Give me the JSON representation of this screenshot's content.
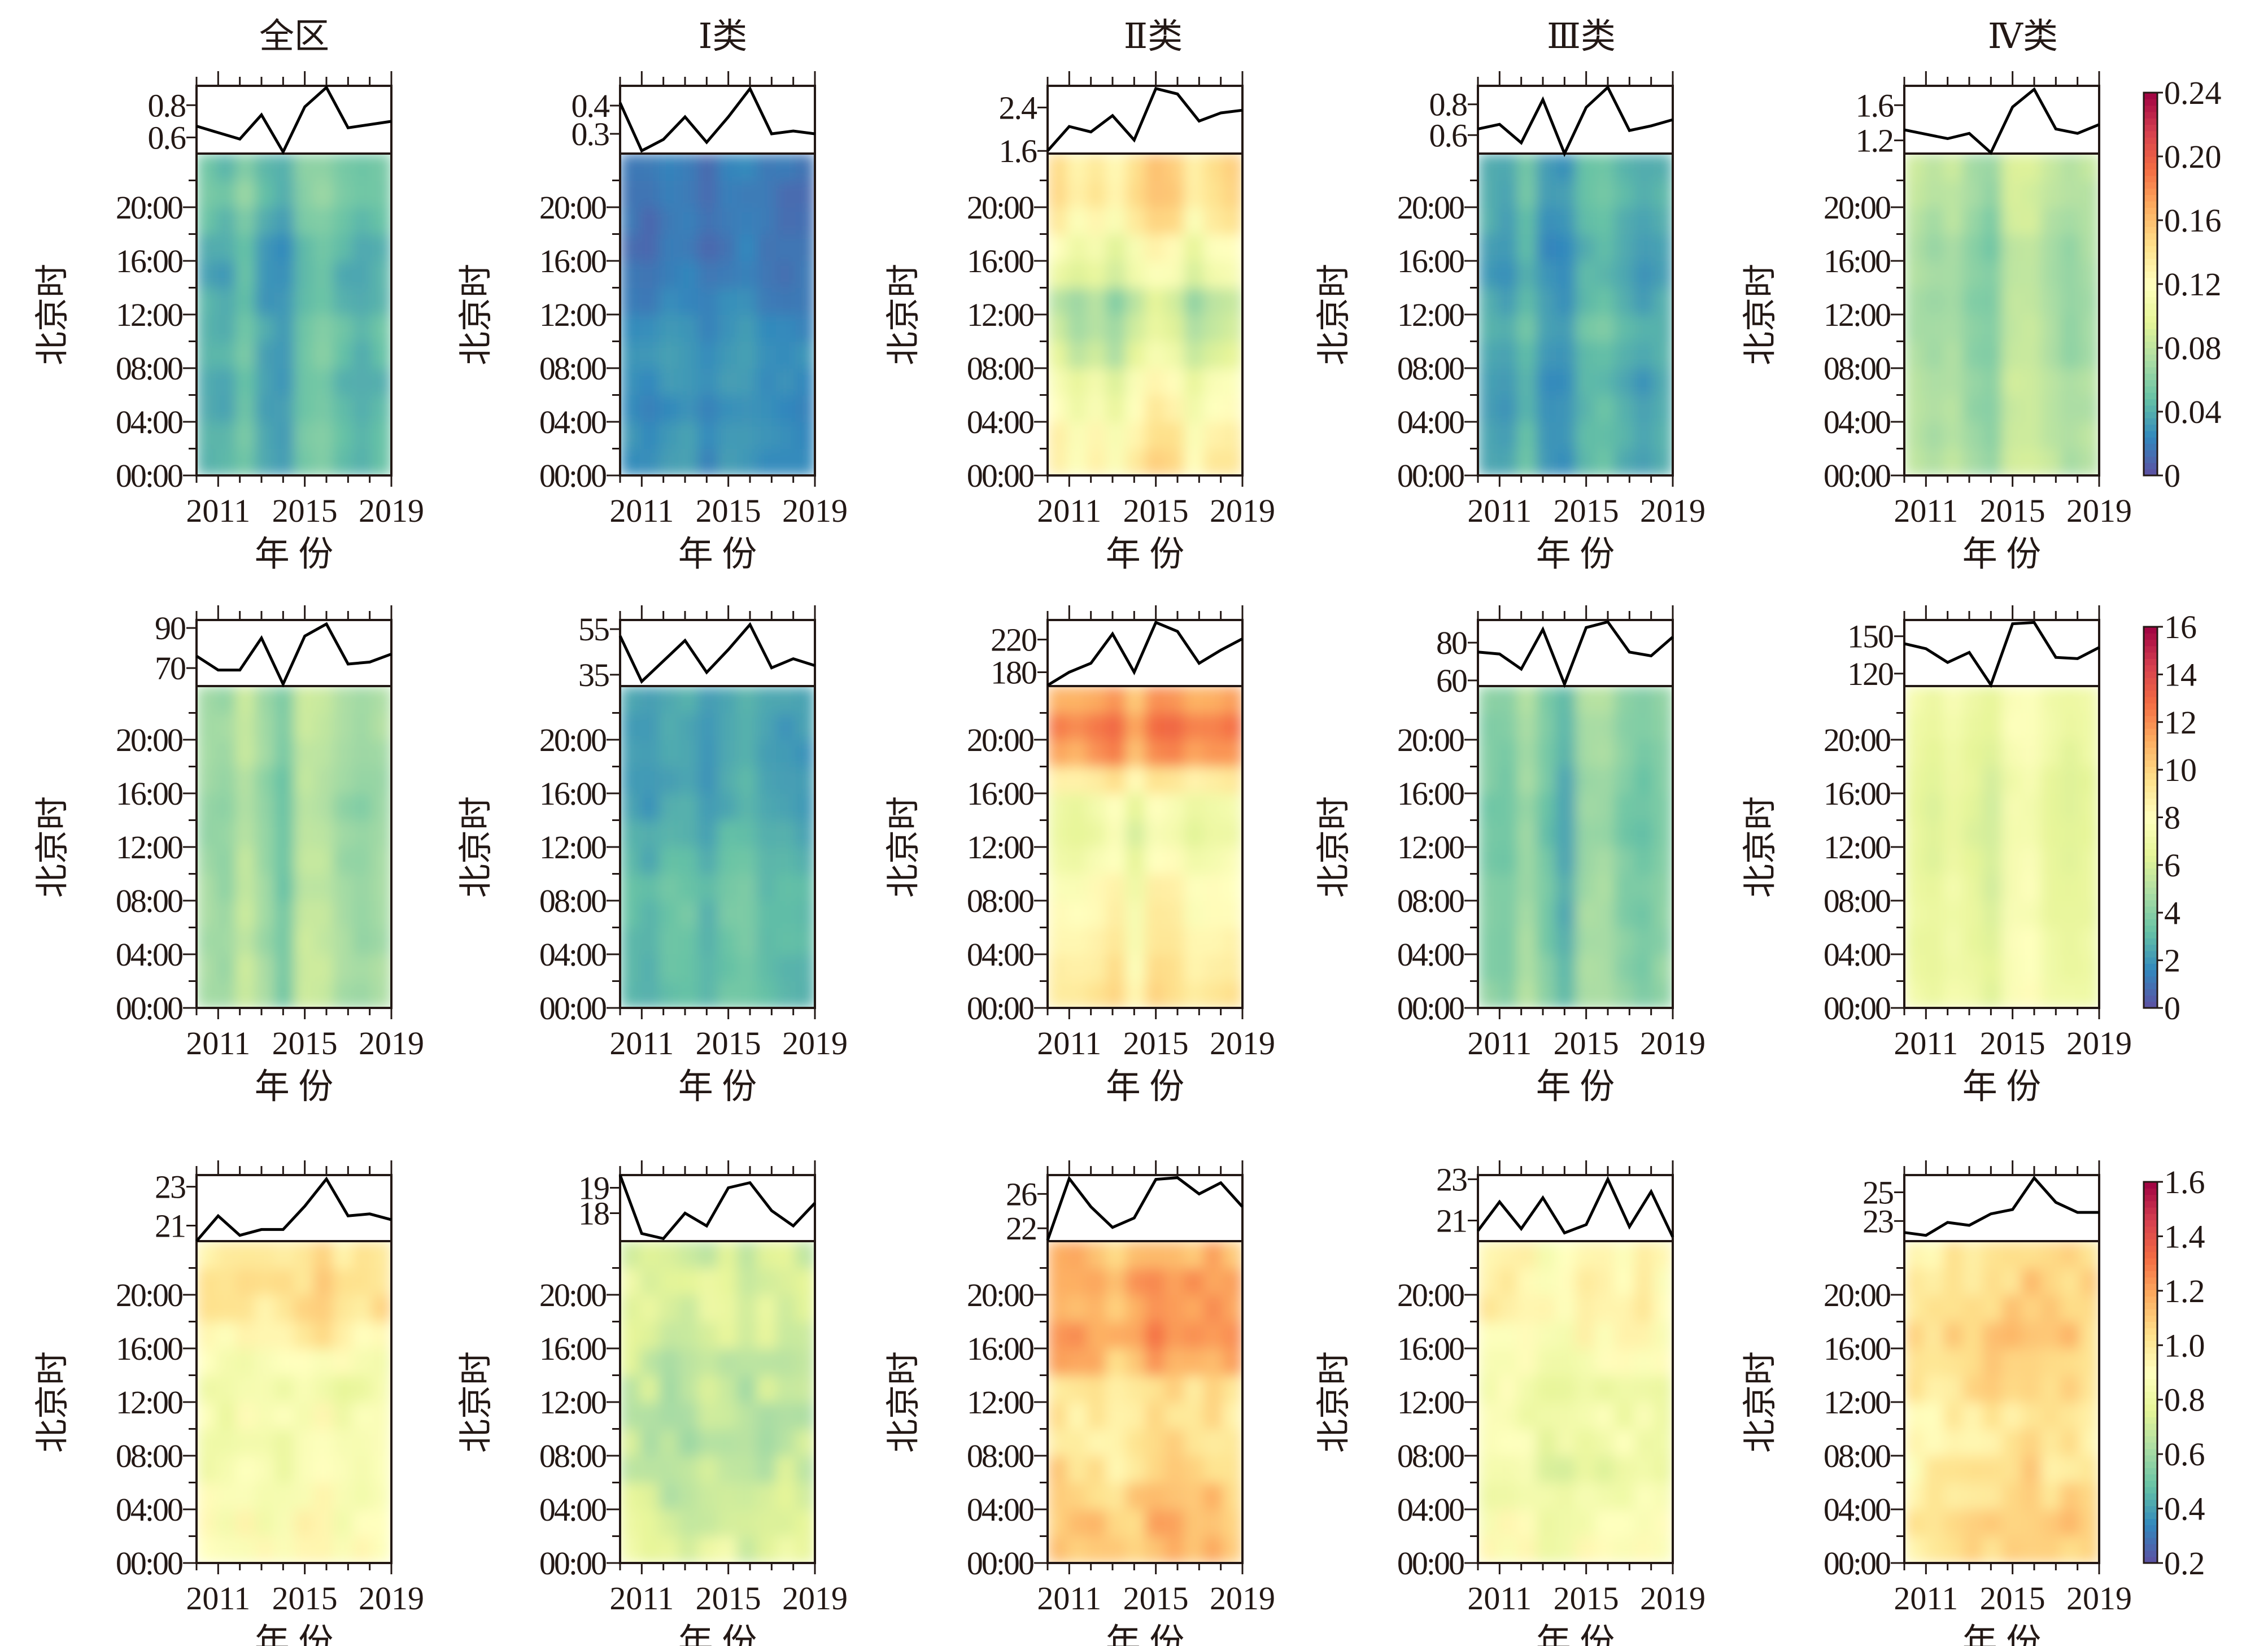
{
  "chart_data": {
    "type": "heatmap",
    "layout": "3 rows x 5 columns of panels; each panel = annual line plot on top + hour-by-year contour heatmap below",
    "column_titles": [
      "全区",
      "Ⅰ类",
      "Ⅱ类",
      "Ⅲ类",
      "Ⅳ类"
    ],
    "xlabel": "年 份",
    "ylabel": "北京时",
    "years": [
      2010,
      2011,
      2012,
      2013,
      2014,
      2015,
      2016,
      2017,
      2018,
      2019
    ],
    "x_tick_labels": [
      "2011",
      "2015",
      "2019"
    ],
    "y_tick_labels": [
      "00:00",
      "04:00",
      "08:00",
      "12:00",
      "16:00",
      "20:00"
    ],
    "hours": [
      0,
      2,
      4,
      6,
      8,
      10,
      12,
      14,
      16,
      18,
      20,
      22
    ],
    "colormap": "Spectral_r",
    "colormap_stops": [
      "#5e4fa2",
      "#3288bd",
      "#66c2a5",
      "#abdda4",
      "#e6f598",
      "#ffffbf",
      "#fee08b",
      "#fdae61",
      "#f46d43",
      "#d53e4f",
      "#9e0142"
    ],
    "rows": [
      {
        "colorbar": {
          "min": 0,
          "max": 0.24,
          "tick_labels": [
            "0",
            "0.04",
            "0.08",
            "0.12",
            "0.16",
            "0.20",
            "0.24"
          ]
        },
        "panels": [
          {
            "title": "全区",
            "line_ticks": [
              "0.6",
              "0.8"
            ],
            "line_tick_values": [
              0.6,
              0.8
            ],
            "line_ylim": [
              0.5,
              0.92
            ],
            "line": [
              0.67,
              0.63,
              0.59,
              0.74,
              0.51,
              0.79,
              0.91,
              0.66,
              0.68,
              0.7
            ],
            "heat_base": 0.045,
            "heat_hour_profile": [
              0.0,
              0.0,
              -0.003,
              -0.005,
              0.0,
              0.0,
              -0.005,
              -0.008,
              -0.005,
              0.002,
              0.008,
              0.005
            ],
            "heat_year_profile": [
              0.0,
              -0.004,
              0.01,
              -0.008,
              -0.012,
              0.008,
              0.012,
              0.003,
              -0.003,
              0.003
            ]
          },
          {
            "title": "Ⅰ类",
            "line_ticks": [
              "0.3",
              "0.4"
            ],
            "line_tick_values": [
              0.3,
              0.4
            ],
            "line_ylim": [
              0.23,
              0.47
            ],
            "line": [
              0.41,
              0.24,
              0.28,
              0.36,
              0.27,
              0.36,
              0.46,
              0.3,
              0.31,
              0.3
            ],
            "heat_base": 0.022,
            "heat_hour_profile": [
              0.006,
              0.006,
              0.004,
              0.006,
              0.008,
              0.004,
              0.0,
              -0.004,
              -0.006,
              -0.006,
              -0.006,
              -0.004
            ],
            "heat_year_profile": [
              0.0,
              -0.003,
              0.002,
              0.004,
              -0.004,
              0.002,
              0.006,
              0.0,
              -0.002,
              -0.002
            ]
          },
          {
            "title": "Ⅱ类",
            "line_ticks": [
              "1.6",
              "2.4"
            ],
            "line_tick_values": [
              1.6,
              2.4
            ],
            "line_ylim": [
              1.55,
              2.8
            ],
            "line": [
              1.6,
              2.05,
              1.95,
              2.25,
              1.8,
              2.75,
              2.65,
              2.15,
              2.3,
              2.35
            ],
            "heat_base": 0.11,
            "heat_hour_profile": [
              0.02,
              0.015,
              0.005,
              0.0,
              -0.02,
              -0.03,
              -0.035,
              -0.01,
              0.0,
              0.02,
              0.03,
              0.03
            ],
            "heat_year_profile": [
              0.005,
              -0.01,
              0.0,
              -0.015,
              0.005,
              0.02,
              0.015,
              -0.01,
              0.005,
              0.01
            ]
          },
          {
            "title": "Ⅲ类",
            "line_ticks": [
              "0.6",
              "0.8"
            ],
            "line_tick_values": [
              0.6,
              0.8
            ],
            "line_ylim": [
              0.48,
              0.92
            ],
            "line": [
              0.64,
              0.67,
              0.55,
              0.83,
              0.48,
              0.78,
              0.91,
              0.63,
              0.66,
              0.7
            ],
            "heat_base": 0.038,
            "heat_hour_profile": [
              0.0,
              0.0,
              -0.002,
              -0.004,
              0.0,
              0.004,
              0.0,
              -0.004,
              -0.004,
              0.0,
              0.004,
              0.002
            ],
            "heat_year_profile": [
              0.0,
              -0.004,
              0.01,
              -0.008,
              -0.01,
              0.008,
              0.012,
              0.002,
              -0.004,
              0.002
            ]
          },
          {
            "title": "Ⅳ类",
            "line_ticks": [
              "1.2",
              "1.6"
            ],
            "line_tick_values": [
              1.2,
              1.6
            ],
            "line_ylim": [
              1.05,
              1.82
            ],
            "line": [
              1.32,
              1.27,
              1.22,
              1.28,
              1.06,
              1.58,
              1.78,
              1.33,
              1.28,
              1.38
            ],
            "heat_base": 0.075,
            "heat_hour_profile": [
              0.004,
              0.002,
              0.0,
              0.0,
              -0.004,
              -0.004,
              -0.006,
              -0.004,
              -0.004,
              0.0,
              0.004,
              0.006
            ],
            "heat_year_profile": [
              0.002,
              -0.004,
              0.002,
              -0.01,
              -0.016,
              0.01,
              0.012,
              0.002,
              -0.006,
              0.0
            ]
          }
        ]
      },
      {
        "colorbar": {
          "min": 0,
          "max": 16,
          "tick_labels": [
            "0",
            "2",
            "4",
            "6",
            "8",
            "10",
            "12",
            "14",
            "16"
          ]
        },
        "panels": [
          {
            "title": "全区",
            "line_ticks": [
              "70",
              "90"
            ],
            "line_tick_values": [
              70,
              90
            ],
            "line_ylim": [
              61,
              94
            ],
            "line": [
              76,
              69,
              69,
              85,
              62,
              86,
              92,
              72,
              73,
              77
            ],
            "heat_base": 4.6,
            "heat_hour_profile": [
              0.2,
              0.2,
              0.1,
              0.0,
              0.0,
              -0.1,
              -0.2,
              -0.3,
              -0.2,
              0.0,
              0.2,
              0.1
            ],
            "heat_year_profile": [
              0.0,
              -0.3,
              0.9,
              -0.2,
              -1.2,
              0.9,
              0.8,
              0.0,
              -0.3,
              0.0
            ]
          },
          {
            "title": "Ⅰ类",
            "line_ticks": [
              "35",
              "55"
            ],
            "line_tick_values": [
              35,
              55
            ],
            "line_ylim": [
              30,
              59
            ],
            "line": [
              52,
              32,
              41,
              50,
              36,
              46,
              57,
              38,
              42,
              39
            ],
            "heat_base": 2.6,
            "heat_hour_profile": [
              0.4,
              0.5,
              0.5,
              0.6,
              0.5,
              0.2,
              0.0,
              -0.3,
              -0.4,
              -0.4,
              -0.4,
              -0.3
            ],
            "heat_year_profile": [
              0.0,
              -0.2,
              0.2,
              0.3,
              -0.3,
              0.3,
              0.6,
              0.0,
              -0.1,
              -0.1
            ]
          },
          {
            "title": "Ⅱ类",
            "line_ticks": [
              "180",
              "220"
            ],
            "line_tick_values": [
              180,
              220
            ],
            "line_ylim": [
              163,
              244
            ],
            "line": [
              164,
              180,
              191,
              227,
              180,
              241,
              230,
              191,
              207,
              221
            ],
            "heat_base": 8.5,
            "heat_hour_profile": [
              0.6,
              0.3,
              0.0,
              -0.4,
              -0.6,
              -1.2,
              -1.8,
              -1.5,
              0.3,
              3.0,
              3.8,
              2.6
            ],
            "heat_year_profile": [
              0.0,
              -0.3,
              0.2,
              0.8,
              -0.8,
              0.8,
              0.7,
              -0.2,
              0.1,
              0.3
            ]
          },
          {
            "title": "Ⅲ类",
            "line_ticks": [
              "60",
              "80"
            ],
            "line_tick_values": [
              60,
              80
            ],
            "line_ylim": [
              57,
              92
            ],
            "line": [
              75,
              74,
              66,
              87,
              58,
              88,
              91,
              75,
              73,
              83
            ],
            "heat_base": 3.8,
            "heat_hour_profile": [
              0.3,
              0.2,
              0.1,
              0.0,
              0.0,
              -0.1,
              -0.3,
              -0.3,
              -0.1,
              0.1,
              0.2,
              0.3
            ],
            "heat_year_profile": [
              0.0,
              -0.2,
              0.9,
              -0.2,
              -1.3,
              0.9,
              0.9,
              0.1,
              -0.3,
              0.2
            ]
          },
          {
            "title": "Ⅳ类",
            "line_ticks": [
              "120",
              "150"
            ],
            "line_tick_values": [
              120,
              150
            ],
            "line_ylim": [
              110,
              163
            ],
            "line": [
              144,
              140,
              129,
              137,
              111,
              160,
              161,
              133,
              132,
              141
            ],
            "heat_base": 6.8,
            "heat_hour_profile": [
              0.3,
              0.2,
              0.1,
              0.0,
              0.0,
              -0.1,
              -0.3,
              -0.3,
              -0.2,
              0.0,
              0.3,
              0.3
            ],
            "heat_year_profile": [
              0.0,
              -0.3,
              0.3,
              -0.2,
              -0.8,
              0.7,
              0.9,
              0.0,
              -0.3,
              0.0
            ]
          }
        ]
      },
      {
        "colorbar": {
          "min": 0.2,
          "max": 1.6,
          "tick_labels": [
            "0.2",
            "0.4",
            "0.6",
            "0.8",
            "1.0",
            "1.2",
            "1.4",
            "1.6"
          ]
        },
        "panels": [
          {
            "title": "全区",
            "line_ticks": [
              "21",
              "23"
            ],
            "line_tick_values": [
              21,
              23
            ],
            "line_ylim": [
              20.2,
              23.6
            ],
            "line": [
              20.2,
              21.5,
              20.5,
              20.8,
              20.8,
              22.0,
              23.4,
              21.5,
              21.6,
              21.3
            ],
            "heat_base": 0.88,
            "heat_hour_profile": [
              0.02,
              0.0,
              -0.02,
              -0.04,
              -0.04,
              -0.02,
              -0.06,
              -0.02,
              0.06,
              0.12,
              0.12,
              0.08
            ],
            "heat_year_profile": [
              0.0,
              -0.02,
              0.02,
              0.0,
              0.0,
              0.04,
              0.06,
              0.0,
              0.02,
              0.02
            ]
          },
          {
            "title": "Ⅰ类",
            "line_ticks": [
              "18",
              "19"
            ],
            "line_tick_values": [
              18,
              19
            ],
            "line_ylim": [
              16.9,
              19.5
            ],
            "line": [
              19.5,
              17.2,
              17.0,
              18.0,
              17.5,
              19.0,
              19.2,
              18.1,
              17.5,
              18.4
            ],
            "heat_base": 0.72,
            "heat_hour_profile": [
              0.04,
              0.02,
              -0.02,
              -0.04,
              -0.06,
              -0.06,
              -0.04,
              -0.04,
              0.0,
              0.02,
              0.02,
              -0.02
            ],
            "heat_year_profile": [
              0.02,
              0.0,
              -0.02,
              -0.04,
              0.0,
              0.02,
              -0.04,
              0.0,
              0.02,
              0.02
            ]
          },
          {
            "title": "Ⅱ类",
            "line_ticks": [
              "22",
              "26"
            ],
            "line_tick_values": [
              22,
              26
            ],
            "line_ylim": [
              20.5,
              28.2
            ],
            "line": [
              20.6,
              27.8,
              24.5,
              22.1,
              23.2,
              27.7,
              27.9,
              26.0,
              27.3,
              24.5
            ],
            "heat_base": 1.08,
            "heat_hour_profile": [
              0.04,
              0.02,
              0.0,
              -0.04,
              -0.08,
              -0.1,
              -0.06,
              0.06,
              0.12,
              0.1,
              0.12,
              0.06
            ],
            "heat_year_profile": [
              0.02,
              0.0,
              0.0,
              -0.06,
              0.0,
              0.06,
              0.06,
              0.02,
              0.04,
              0.02
            ]
          },
          {
            "title": "Ⅲ类",
            "line_ticks": [
              "21",
              "23"
            ],
            "line_tick_values": [
              21,
              23
            ],
            "line_ylim": [
              20.0,
              23.2
            ],
            "line": [
              20.5,
              21.9,
              20.6,
              22.1,
              20.4,
              20.8,
              23.0,
              20.7,
              22.4,
              20.2
            ],
            "heat_base": 0.86,
            "heat_hour_profile": [
              0.02,
              0.0,
              -0.04,
              -0.06,
              -0.04,
              -0.04,
              -0.02,
              0.0,
              0.06,
              0.1,
              0.08,
              0.04
            ],
            "heat_year_profile": [
              0.0,
              0.02,
              0.04,
              -0.02,
              -0.02,
              0.02,
              0.0,
              0.02,
              0.02,
              0.0
            ]
          },
          {
            "title": "Ⅳ类",
            "line_ticks": [
              "23",
              "25"
            ],
            "line_tick_values": [
              23,
              25
            ],
            "line_ylim": [
              21.6,
              26.2
            ],
            "line": [
              22.2,
              22.0,
              22.9,
              22.7,
              23.5,
              23.8,
              26.0,
              24.3,
              23.6,
              23.6
            ],
            "heat_base": 0.98,
            "heat_hour_profile": [
              0.06,
              0.06,
              0.02,
              0.0,
              -0.04,
              -0.02,
              0.04,
              0.06,
              0.08,
              0.06,
              0.04,
              0.0
            ],
            "heat_year_profile": [
              -0.04,
              -0.02,
              0.0,
              0.0,
              0.02,
              0.04,
              0.08,
              0.04,
              0.06,
              0.02
            ]
          }
        ]
      }
    ]
  }
}
